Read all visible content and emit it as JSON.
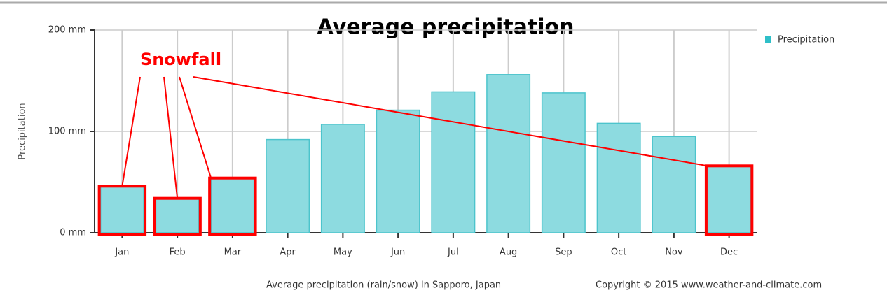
{
  "chart_data": {
    "type": "bar",
    "title": "Average precipitation",
    "y_label": "Precipitation",
    "categories": [
      "Jan",
      "Feb",
      "Mar",
      "Apr",
      "May",
      "Jun",
      "Jul",
      "Aug",
      "Sep",
      "Oct",
      "Nov",
      "Dec"
    ],
    "series": [
      {
        "name": "Precipitation",
        "color": "#8ddbe0",
        "values": [
          46,
          34,
          54,
          92,
          107,
          121,
          139,
          156,
          138,
          108,
          95,
          66
        ]
      }
    ],
    "ylim": [
      0,
      200
    ],
    "yticks": [
      {
        "value": 0,
        "label": "0 mm"
      },
      {
        "value": 100,
        "label": "100 mm"
      },
      {
        "value": 200,
        "label": "200 mm"
      }
    ],
    "grid": true,
    "legend": "top-right",
    "annotation": {
      "text": "Snowfall",
      "color": "#ff0000",
      "highlight": [
        0,
        1,
        2,
        11
      ]
    },
    "caption": "Average precipitation (rain/snow) in Sapporo, Japan",
    "copyright": "Copyright © 2015 www.weather-and-climate.com"
  }
}
